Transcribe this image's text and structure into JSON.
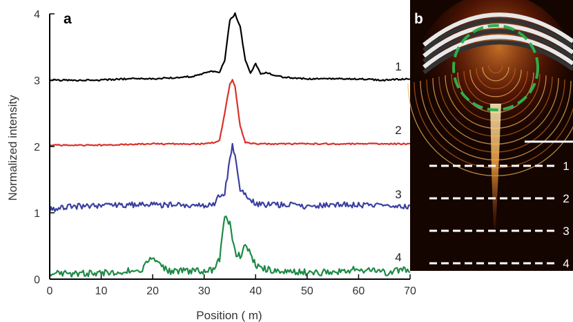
{
  "figure": {
    "panel_a_letter": "a",
    "panel_b_letter": "b",
    "line_labels": [
      "1",
      "2",
      "3",
      "4"
    ]
  },
  "chart_data": {
    "type": "line",
    "title": "",
    "xlabel": "Position ( m)",
    "ylabel": "Normalized intensity",
    "xlim": [
      0,
      70
    ],
    "ylim": [
      0,
      4
    ],
    "x_ticks": [
      0,
      10,
      20,
      30,
      40,
      50,
      60,
      70
    ],
    "y_ticks": [
      0,
      1,
      2,
      3,
      4
    ],
    "grid": false,
    "legend": "none",
    "series": [
      {
        "name": "1",
        "color": "#000000",
        "x": [
          0,
          5,
          10,
          15,
          20,
          25,
          28,
          30,
          32,
          33,
          34,
          35,
          36,
          37,
          38,
          39,
          40,
          41,
          42,
          44,
          46,
          50,
          55,
          60,
          65,
          70
        ],
        "y": [
          3.0,
          3.0,
          3.0,
          3.02,
          3.02,
          3.04,
          3.06,
          3.1,
          3.14,
          3.12,
          3.3,
          3.9,
          4.0,
          3.8,
          3.3,
          3.1,
          3.25,
          3.08,
          3.12,
          3.06,
          3.04,
          3.02,
          3.02,
          3.02,
          3.0,
          3.02
        ]
      },
      {
        "name": "2",
        "color": "#d9302a",
        "x": [
          0,
          10,
          20,
          30,
          32,
          33,
          34,
          35,
          35.5,
          36,
          37,
          38,
          40,
          50,
          60,
          70
        ],
        "y": [
          2.02,
          2.02,
          2.04,
          2.04,
          2.06,
          2.1,
          2.5,
          2.95,
          3.0,
          2.9,
          2.3,
          2.06,
          2.04,
          2.04,
          2.04,
          2.04
        ]
      },
      {
        "name": "3",
        "color": "#3a40a0",
        "x": [
          0,
          5,
          10,
          15,
          20,
          25,
          30,
          32,
          33,
          34,
          35,
          35.5,
          36,
          37,
          38,
          39,
          40,
          45,
          50,
          55,
          60,
          65,
          70
        ],
        "y": [
          1.05,
          1.1,
          1.1,
          1.12,
          1.12,
          1.12,
          1.12,
          1.15,
          1.25,
          1.3,
          1.8,
          2.0,
          1.85,
          1.3,
          1.3,
          1.2,
          1.12,
          1.12,
          1.1,
          1.12,
          1.12,
          1.1,
          1.1
        ]
      },
      {
        "name": "4",
        "color": "#1d8a45",
        "x": [
          0,
          5,
          10,
          15,
          18,
          19,
          20,
          21,
          23,
          25,
          30,
          32,
          33,
          34,
          35,
          36,
          37,
          38,
          39,
          40,
          42,
          45,
          50,
          55,
          60,
          65,
          70
        ],
        "y": [
          0.1,
          0.08,
          0.1,
          0.12,
          0.15,
          0.3,
          0.35,
          0.25,
          0.12,
          0.12,
          0.12,
          0.15,
          0.3,
          0.95,
          0.85,
          0.4,
          0.35,
          0.5,
          0.4,
          0.2,
          0.15,
          0.12,
          0.1,
          0.1,
          0.15,
          0.1,
          0.15
        ]
      }
    ]
  }
}
